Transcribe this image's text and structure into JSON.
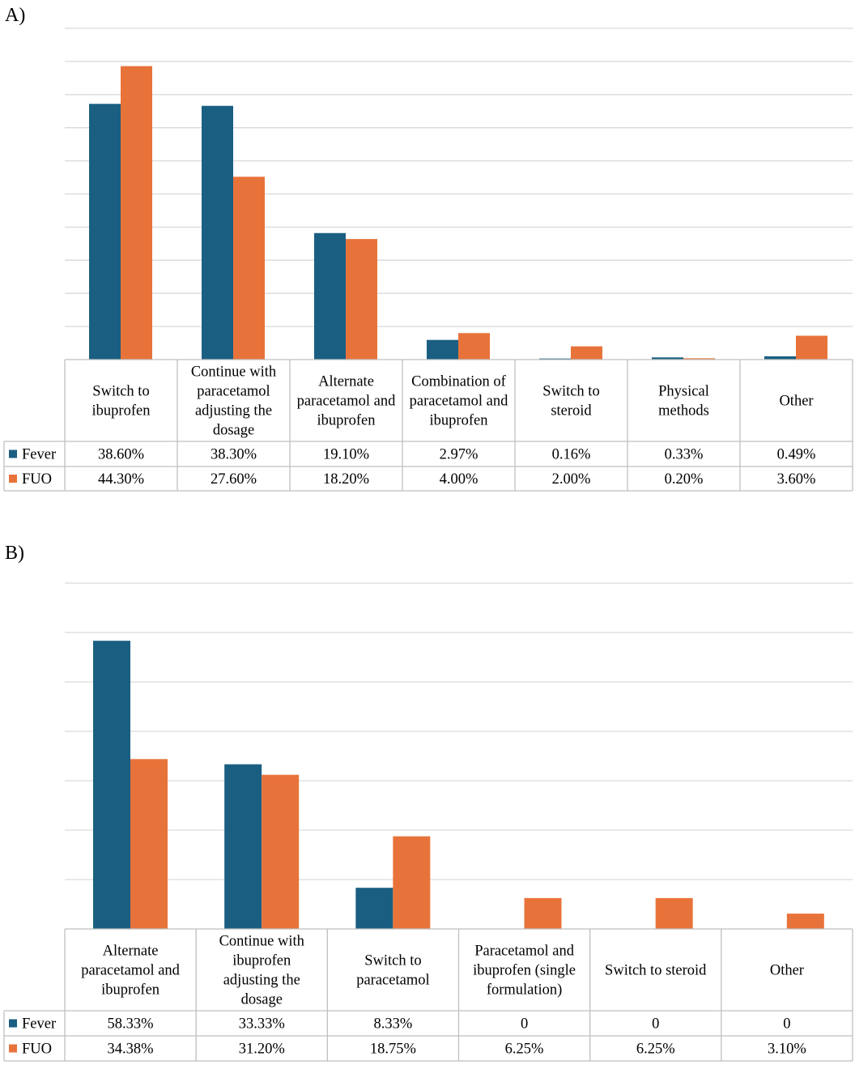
{
  "colors": {
    "fever": "#1a5f82",
    "fuo": "#e8733a",
    "grid": "#d9d9d9"
  },
  "chart_data": [
    {
      "panel_label": "A)",
      "type": "bar",
      "ylim": [
        0,
        50
      ],
      "grid": true,
      "categories": [
        [
          "Switch to",
          "ibuprofen"
        ],
        [
          "Continue with",
          "paracetamol",
          "adjusting the",
          "dosage"
        ],
        [
          "Alternate",
          "paracetamol and",
          "ibuprofen"
        ],
        [
          "Combination of",
          "paracetamol and",
          "ibuprofen"
        ],
        [
          "Switch to",
          "steroid"
        ],
        [
          "Physical",
          "methods"
        ],
        [
          "Other"
        ]
      ],
      "series": [
        {
          "name": "Fever",
          "values": [
            38.6,
            38.3,
            19.1,
            2.97,
            0.16,
            0.33,
            0.49
          ],
          "labels": [
            "38.60%",
            "38.30%",
            "19.10%",
            "2.97%",
            "0.16%",
            "0.33%",
            "0.49%"
          ]
        },
        {
          "name": "FUO",
          "values": [
            44.3,
            27.6,
            18.2,
            4.0,
            2.0,
            0.2,
            3.6
          ],
          "labels": [
            "44.30%",
            "27.60%",
            "18.20%",
            "4.00%",
            "2.00%",
            "0.20%",
            "3.60%"
          ]
        }
      ]
    },
    {
      "panel_label": "B)",
      "type": "bar",
      "ylim": [
        0,
        70
      ],
      "grid": true,
      "categories": [
        [
          "Alternate",
          "paracetamol and",
          "ibuprofen"
        ],
        [
          "Continue with",
          "ibuprofen",
          "adjusting the",
          "dosage"
        ],
        [
          "Switch to",
          "paracetamol"
        ],
        [
          "Paracetamol and",
          "ibuprofen (single",
          "formulation)"
        ],
        [
          "Switch to steroid"
        ],
        [
          "Other"
        ]
      ],
      "series": [
        {
          "name": "Fever",
          "values": [
            58.33,
            33.33,
            8.33,
            0,
            0,
            0
          ],
          "labels": [
            "58.33%",
            "33.33%",
            "8.33%",
            "0",
            "0",
            "0"
          ]
        },
        {
          "name": "FUO",
          "values": [
            34.38,
            31.2,
            18.75,
            6.25,
            6.25,
            3.1
          ],
          "labels": [
            "34.38%",
            "31.20%",
            "18.75%",
            "6.25%",
            "6.25%",
            "3.10%"
          ]
        }
      ]
    }
  ]
}
